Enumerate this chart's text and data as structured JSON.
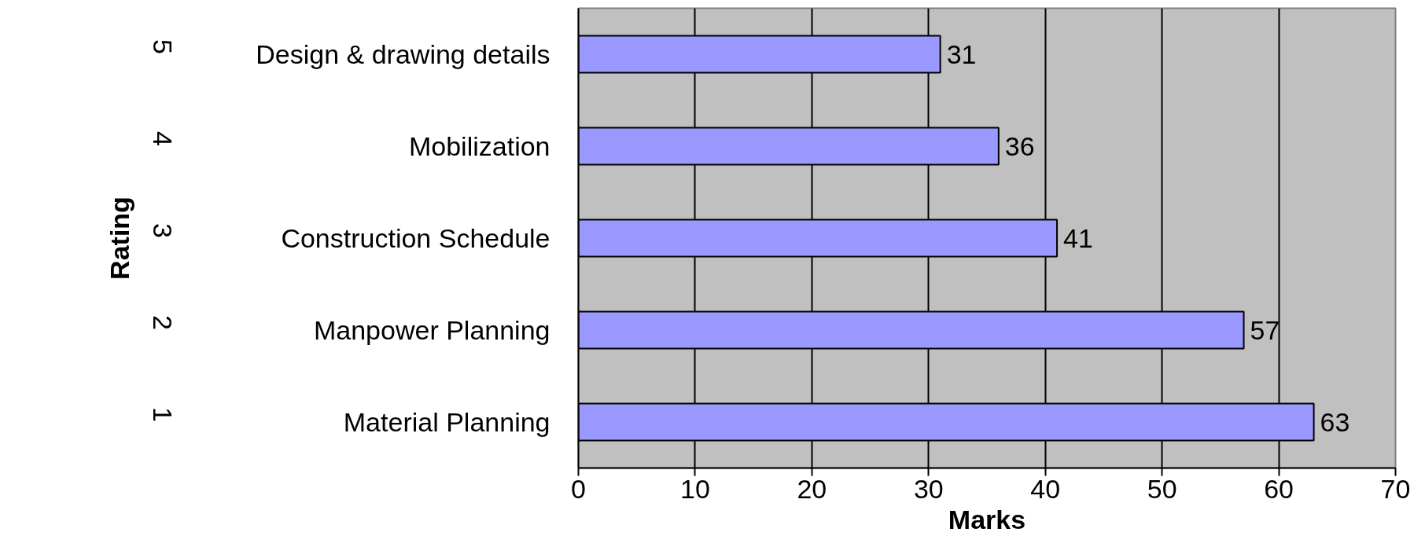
{
  "chart_data": {
    "type": "bar",
    "orientation": "horizontal",
    "xlabel": "Marks",
    "ylabel": "Rating",
    "categories": [
      "Design & drawing details",
      "Mobilization",
      "Construction Schedule",
      "Manpower Planning",
      "Material Planning"
    ],
    "values": [
      31,
      36,
      41,
      57,
      63
    ],
    "color": "#9999ff",
    "xlim": [
      0,
      70
    ],
    "xticks": [
      0,
      10,
      20,
      30,
      40,
      50,
      60,
      70
    ],
    "grid": "x",
    "data_labels": true,
    "annotations": [
      "5",
      "4",
      "3",
      "2",
      "1"
    ]
  }
}
